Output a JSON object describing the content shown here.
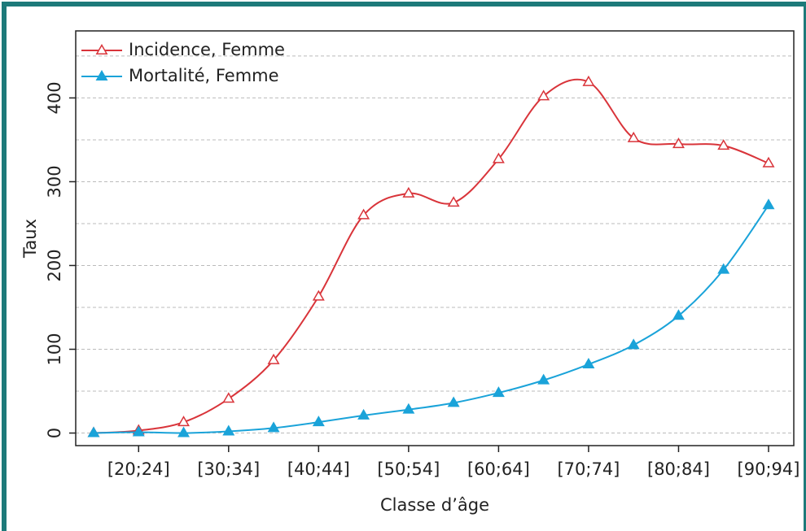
{
  "chart_data": {
    "type": "line",
    "xlabel": "Classe d’âge",
    "ylabel": "Taux",
    "categories": [
      null,
      "[20;24]",
      null,
      "[30;34]",
      null,
      "[40;44]",
      null,
      "[50;54]",
      null,
      "[60;64]",
      null,
      "[70;74]",
      null,
      "[80;84]",
      null,
      "[90;94]"
    ],
    "series": [
      {
        "name": "Incidence, Femme",
        "color": "#d9343a",
        "marker": "open-triangle",
        "values": [
          0,
          3,
          13,
          41,
          87,
          163,
          260,
          286,
          275,
          327,
          402,
          419,
          352,
          345,
          343,
          322
        ]
      },
      {
        "name": "Mortalité, Femme",
        "color": "#1aa3d9",
        "marker": "filled-triangle",
        "values": [
          0,
          1,
          0,
          2,
          6,
          13,
          21,
          28,
          36,
          48,
          63,
          82,
          105,
          140,
          195,
          272
        ]
      }
    ],
    "ylim": [
      -15,
      480
    ],
    "yticks": [
      0,
      100,
      200,
      300,
      400
    ],
    "minor_yticks": [
      50,
      150,
      250,
      350,
      450
    ],
    "grid": true,
    "smooth": true,
    "legend": "upper left"
  }
}
